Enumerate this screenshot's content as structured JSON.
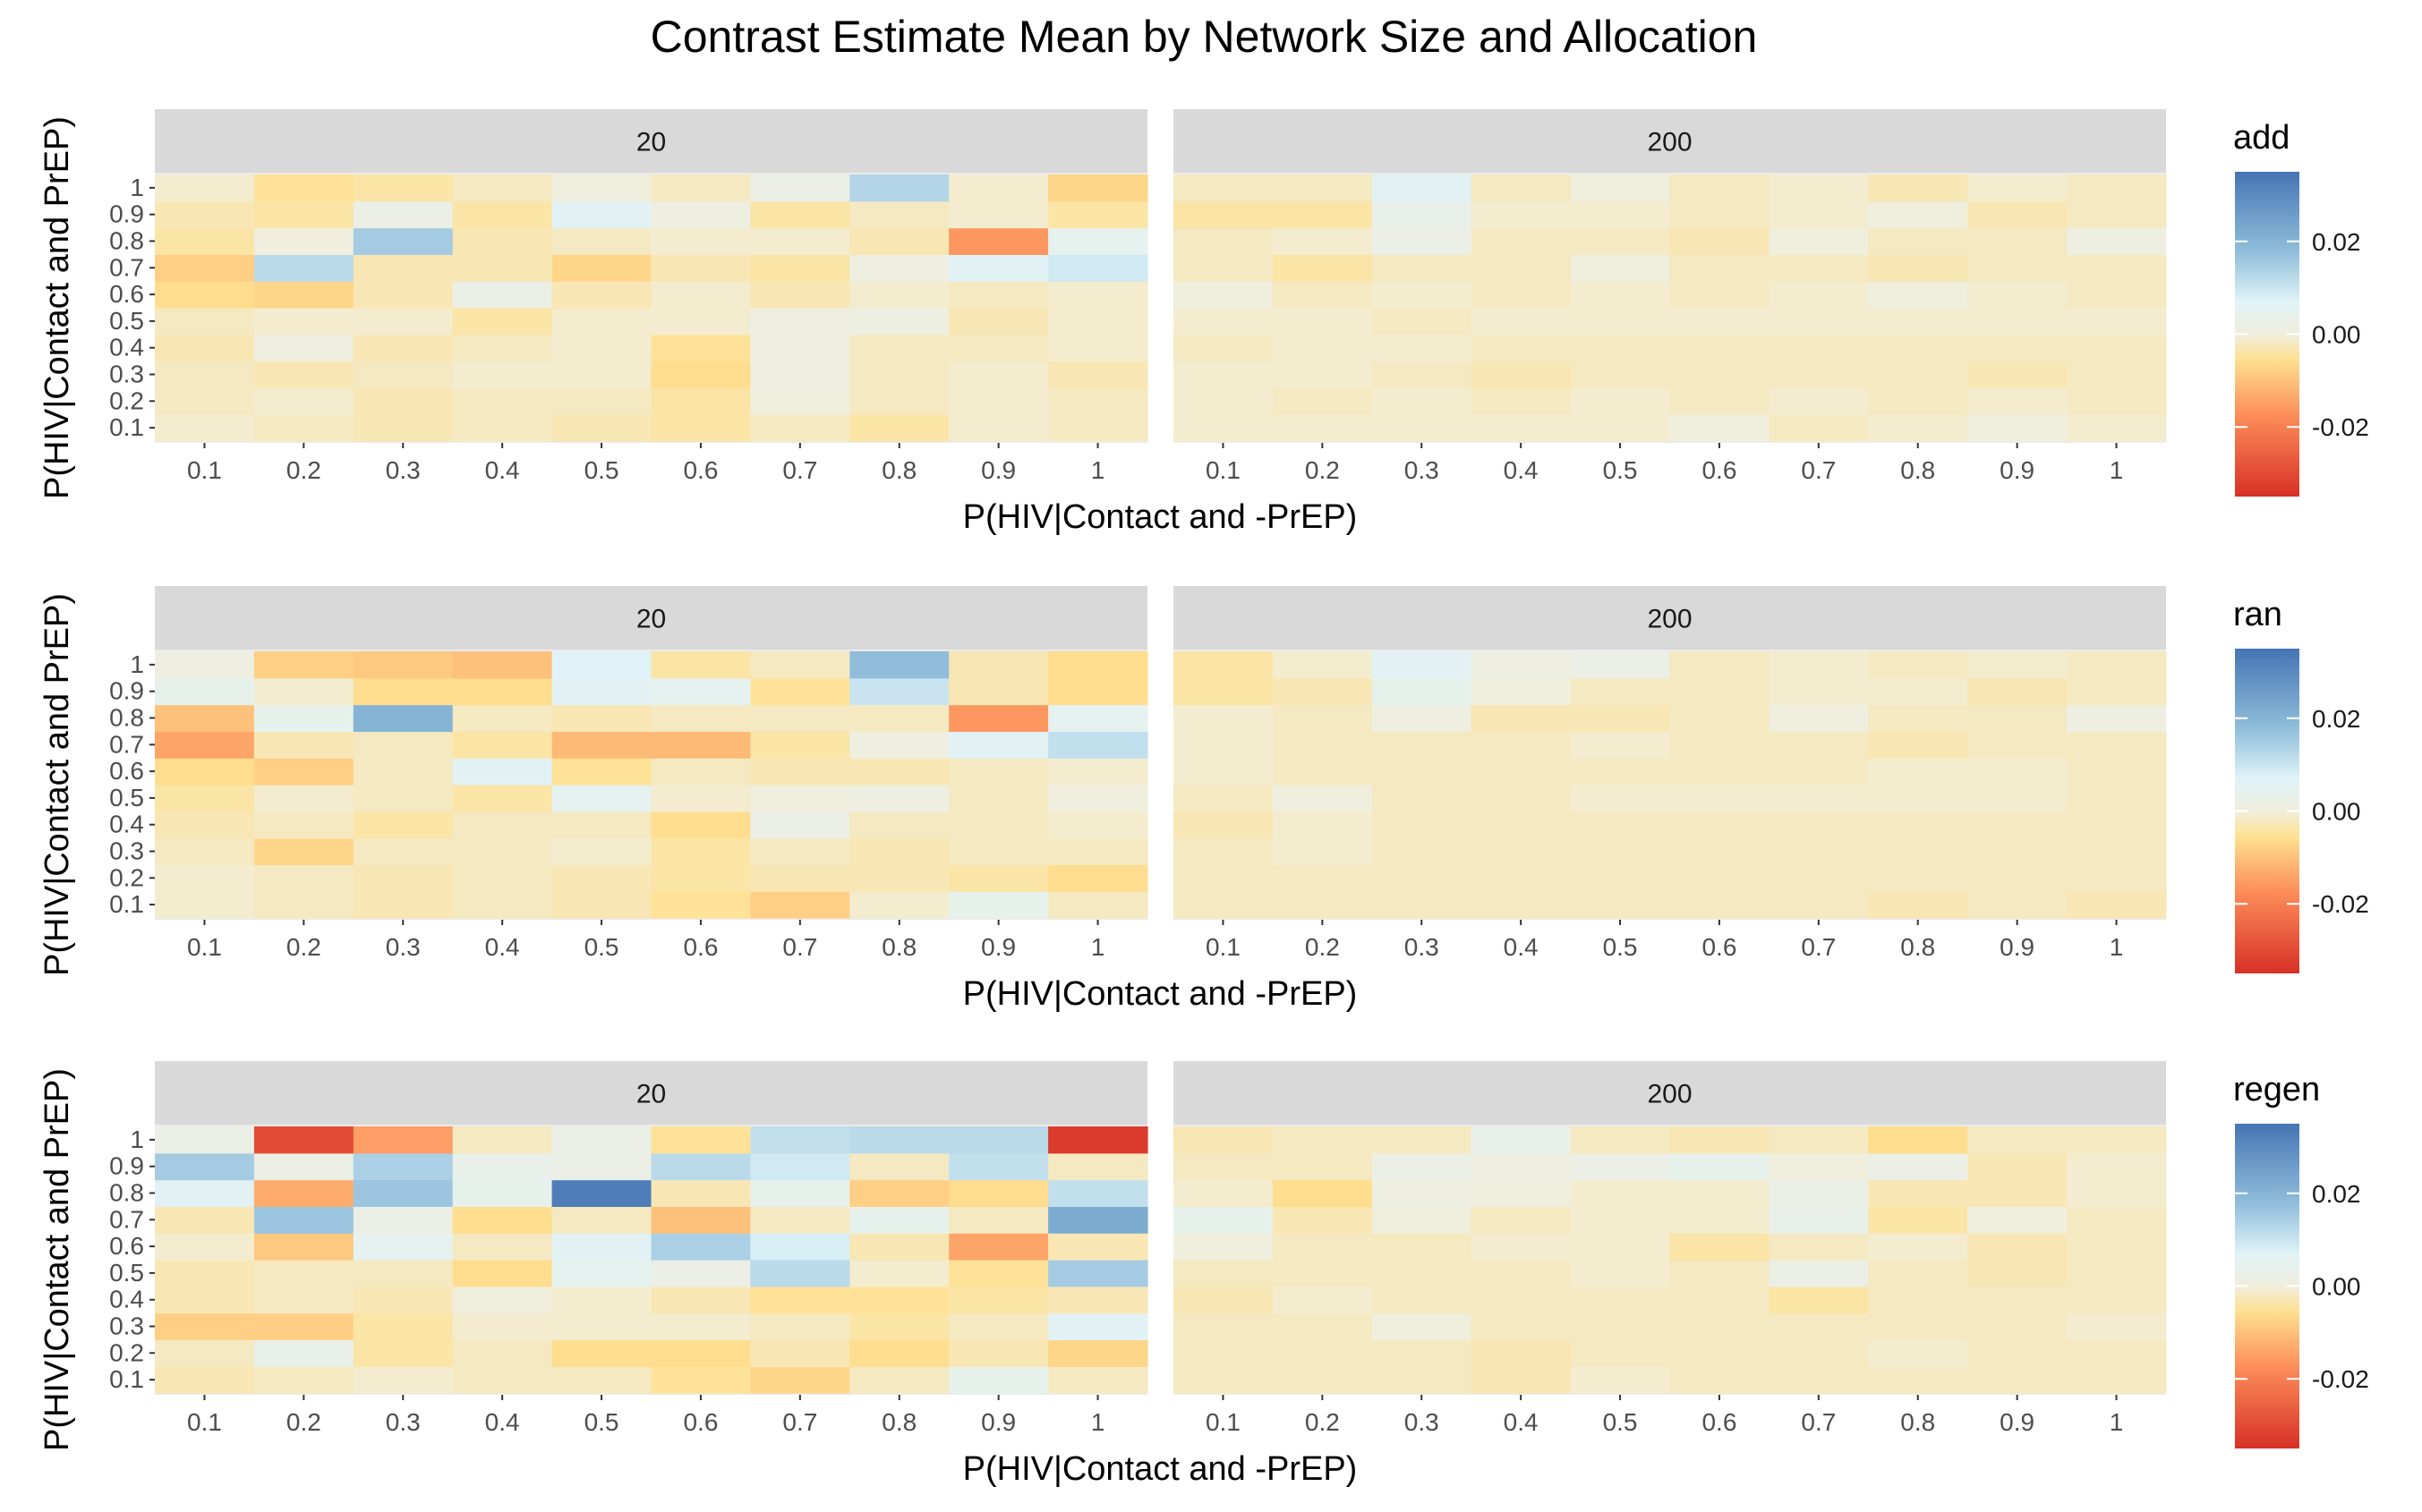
{
  "chart_data": {
    "type": "heatmap",
    "title": "Contrast Estimate Mean by Network Size and Allocation",
    "xlabel": "P(HIV|Contact and -PrEP)",
    "ylabel": "P(HIV|Contact and PrEP)",
    "x_ticks": [
      "0.1",
      "0.2",
      "0.3",
      "0.4",
      "0.5",
      "0.6",
      "0.7",
      "0.8",
      "0.9",
      "1"
    ],
    "y_ticks": [
      "0.1",
      "0.2",
      "0.3",
      "0.4",
      "0.5",
      "0.6",
      "0.7",
      "0.8",
      "0.9",
      "1"
    ],
    "network_sizes": [
      "20",
      "200"
    ],
    "legend_ticks": [
      "0.02",
      "0.00",
      "-0.02"
    ],
    "legend_tick_values": [
      0.02,
      0.0,
      -0.02
    ],
    "color_limits": [
      -0.035,
      0.035
    ],
    "colors": {
      "low": "#d73027",
      "mid": "#f0eedd",
      "high": "#4575b4",
      "strip": "#d9d9d9",
      "panel": "#ebebeb"
    },
    "panels": [
      {
        "allocation": "add",
        "facets": [
          {
            "size": "20",
            "values": [
              [
                -0.001,
                -0.002,
                -0.003,
                -0.002,
                -0.003,
                -0.004,
                -0.002,
                -0.004,
                -0.001,
                -0.002
              ],
              [
                -0.002,
                -0.001,
                -0.003,
                -0.002,
                -0.002,
                -0.004,
                0.0,
                -0.002,
                -0.001,
                -0.002
              ],
              [
                -0.002,
                -0.003,
                -0.002,
                -0.001,
                -0.001,
                -0.006,
                0.001,
                -0.002,
                -0.001,
                -0.003
              ],
              [
                -0.003,
                0.001,
                -0.003,
                -0.002,
                -0.001,
                -0.005,
                0.001,
                -0.002,
                -0.002,
                -0.001
              ],
              [
                -0.002,
                -0.001,
                -0.001,
                -0.004,
                -0.001,
                -0.001,
                0.001,
                0.001,
                -0.003,
                -0.001
              ],
              [
                -0.006,
                -0.007,
                -0.003,
                0.002,
                -0.003,
                -0.001,
                -0.003,
                -0.001,
                -0.002,
                -0.001
              ],
              [
                -0.008,
                0.012,
                -0.003,
                -0.003,
                -0.007,
                -0.003,
                -0.004,
                0.001,
                0.006,
                0.009
              ],
              [
                -0.004,
                0.0,
                0.015,
                -0.003,
                -0.002,
                -0.001,
                -0.001,
                -0.003,
                -0.016,
                0.005
              ],
              [
                -0.003,
                -0.004,
                0.002,
                -0.004,
                0.006,
                0.001,
                -0.004,
                -0.002,
                -0.001,
                -0.004
              ],
              [
                -0.001,
                -0.005,
                -0.004,
                -0.002,
                0.0,
                -0.002,
                0.002,
                0.013,
                -0.001,
                -0.007
              ]
            ]
          },
          {
            "size": "200",
            "values": [
              [
                -0.001,
                -0.001,
                -0.001,
                -0.001,
                -0.001,
                0.0,
                -0.002,
                -0.001,
                0.0,
                -0.001
              ],
              [
                -0.001,
                -0.002,
                -0.001,
                -0.002,
                -0.001,
                -0.002,
                -0.001,
                -0.002,
                -0.001,
                -0.002
              ],
              [
                -0.001,
                -0.001,
                -0.002,
                -0.003,
                -0.002,
                -0.002,
                -0.002,
                -0.002,
                -0.003,
                -0.002
              ],
              [
                -0.002,
                -0.001,
                -0.001,
                -0.002,
                -0.002,
                -0.002,
                -0.002,
                -0.002,
                -0.002,
                -0.002
              ],
              [
                -0.001,
                -0.001,
                -0.002,
                -0.001,
                -0.001,
                -0.001,
                -0.001,
                -0.001,
                -0.001,
                -0.001
              ],
              [
                0.0,
                -0.002,
                -0.001,
                -0.002,
                -0.001,
                -0.002,
                -0.001,
                0.0,
                -0.001,
                -0.002
              ],
              [
                -0.002,
                -0.004,
                -0.002,
                -0.002,
                0.0,
                -0.002,
                -0.002,
                -0.003,
                -0.002,
                -0.002
              ],
              [
                -0.002,
                -0.001,
                0.002,
                -0.002,
                -0.002,
                -0.003,
                0.0,
                -0.002,
                -0.002,
                0.001
              ],
              [
                -0.004,
                -0.004,
                0.003,
                -0.001,
                -0.001,
                -0.002,
                -0.001,
                0.0,
                -0.003,
                -0.002
              ],
              [
                -0.002,
                -0.002,
                0.006,
                -0.002,
                0.0,
                -0.002,
                -0.001,
                -0.003,
                -0.001,
                -0.002
              ]
            ]
          }
        ]
      },
      {
        "allocation": "ran",
        "facets": [
          {
            "size": "20",
            "values": [
              [
                -0.001,
                -0.002,
                -0.003,
                -0.002,
                -0.003,
                -0.005,
                -0.008,
                -0.001,
                0.004,
                -0.002
              ],
              [
                -0.001,
                -0.002,
                -0.003,
                -0.002,
                -0.003,
                -0.004,
                -0.003,
                -0.003,
                -0.004,
                -0.006
              ],
              [
                -0.002,
                -0.007,
                -0.002,
                -0.002,
                -0.001,
                -0.004,
                -0.002,
                -0.003,
                -0.002,
                -0.002
              ],
              [
                -0.003,
                -0.002,
                -0.004,
                -0.002,
                -0.002,
                -0.006,
                0.002,
                -0.002,
                -0.002,
                -0.001
              ],
              [
                -0.004,
                -0.001,
                -0.002,
                -0.004,
                0.005,
                -0.001,
                0.0,
                0.001,
                -0.002,
                0.0
              ],
              [
                -0.006,
                -0.008,
                -0.002,
                0.006,
                -0.005,
                -0.002,
                -0.003,
                -0.003,
                -0.002,
                -0.001
              ],
              [
                -0.014,
                -0.003,
                -0.002,
                -0.004,
                -0.011,
                -0.011,
                -0.004,
                0.001,
                0.006,
                0.011
              ],
              [
                -0.01,
                0.004,
                0.02,
                -0.002,
                -0.003,
                -0.002,
                -0.002,
                -0.002,
                -0.016,
                0.005
              ],
              [
                0.004,
                -0.001,
                -0.006,
                -0.006,
                0.006,
                0.005,
                -0.005,
                0.01,
                -0.003,
                -0.006
              ],
              [
                0.001,
                -0.008,
                -0.009,
                -0.01,
                0.007,
                -0.004,
                -0.002,
                0.018,
                -0.003,
                -0.006
              ]
            ]
          },
          {
            "size": "200",
            "values": [
              [
                -0.002,
                -0.002,
                -0.002,
                -0.002,
                -0.002,
                -0.002,
                -0.002,
                -0.003,
                -0.002,
                -0.003
              ],
              [
                -0.002,
                -0.002,
                -0.002,
                -0.002,
                -0.002,
                -0.002,
                -0.002,
                -0.002,
                -0.002,
                -0.002
              ],
              [
                -0.002,
                -0.001,
                -0.002,
                -0.002,
                -0.002,
                -0.002,
                -0.002,
                -0.002,
                -0.002,
                -0.002
              ],
              [
                -0.003,
                -0.001,
                -0.002,
                -0.002,
                -0.002,
                -0.002,
                -0.002,
                -0.002,
                -0.002,
                -0.002
              ],
              [
                -0.002,
                0.0,
                -0.002,
                -0.002,
                -0.001,
                -0.001,
                -0.001,
                -0.001,
                -0.001,
                -0.002
              ],
              [
                -0.001,
                -0.002,
                -0.002,
                -0.002,
                -0.002,
                -0.002,
                -0.002,
                -0.001,
                -0.001,
                -0.002
              ],
              [
                -0.001,
                -0.002,
                -0.002,
                -0.002,
                -0.001,
                -0.002,
                -0.002,
                -0.003,
                -0.002,
                -0.002
              ],
              [
                -0.001,
                -0.002,
                0.001,
                -0.003,
                -0.003,
                -0.002,
                0.0,
                -0.002,
                -0.002,
                0.001
              ],
              [
                -0.004,
                -0.003,
                0.004,
                0.0,
                -0.002,
                -0.002,
                -0.001,
                -0.001,
                -0.003,
                -0.002
              ],
              [
                -0.004,
                -0.001,
                0.006,
                0.001,
                0.002,
                -0.002,
                -0.001,
                -0.002,
                -0.001,
                -0.002
              ]
            ]
          }
        ]
      },
      {
        "allocation": "regen",
        "facets": [
          {
            "size": "20",
            "values": [
              [
                -0.003,
                -0.002,
                -0.001,
                -0.002,
                -0.002,
                -0.005,
                -0.007,
                -0.002,
                0.004,
                -0.002
              ],
              [
                -0.002,
                0.003,
                -0.004,
                -0.002,
                -0.006,
                -0.006,
                -0.003,
                -0.006,
                -0.003,
                -0.007
              ],
              [
                -0.008,
                -0.008,
                -0.004,
                -0.001,
                -0.001,
                -0.001,
                -0.002,
                -0.004,
                -0.002,
                0.006
              ],
              [
                -0.003,
                -0.002,
                -0.003,
                0.0,
                -0.001,
                -0.003,
                -0.005,
                -0.005,
                -0.004,
                -0.003
              ],
              [
                -0.003,
                -0.002,
                -0.002,
                -0.006,
                0.005,
                0.002,
                0.012,
                -0.001,
                -0.005,
                0.015
              ],
              [
                -0.001,
                -0.009,
                0.005,
                -0.002,
                0.006,
                0.014,
                0.008,
                -0.003,
                -0.014,
                -0.003
              ],
              [
                -0.003,
                0.016,
                0.002,
                -0.006,
                -0.002,
                -0.01,
                -0.002,
                0.004,
                -0.002,
                0.022
              ],
              [
                0.006,
                -0.013,
                0.016,
                0.004,
                0.033,
                -0.003,
                0.004,
                -0.008,
                -0.006,
                0.011
              ],
              [
                0.015,
                0.002,
                0.014,
                0.003,
                0.002,
                0.012,
                0.009,
                -0.002,
                0.011,
                -0.002
              ],
              [
                0.002,
                -0.03,
                -0.015,
                -0.002,
                0.002,
                -0.005,
                0.011,
                0.012,
                0.012,
                -0.033
              ]
            ]
          },
          {
            "size": "200",
            "values": [
              [
                -0.002,
                -0.002,
                -0.002,
                -0.003,
                -0.001,
                -0.002,
                -0.002,
                -0.002,
                -0.002,
                -0.002
              ],
              [
                -0.002,
                -0.002,
                -0.002,
                -0.003,
                -0.002,
                -0.002,
                -0.002,
                -0.001,
                -0.002,
                -0.002
              ],
              [
                -0.002,
                -0.002,
                0.0,
                -0.002,
                -0.002,
                -0.002,
                -0.002,
                -0.002,
                -0.002,
                -0.001
              ],
              [
                -0.003,
                -0.001,
                -0.002,
                -0.002,
                -0.002,
                -0.002,
                -0.004,
                -0.002,
                -0.002,
                -0.002
              ],
              [
                -0.002,
                -0.002,
                -0.002,
                -0.002,
                -0.001,
                -0.002,
                0.002,
                -0.002,
                -0.003,
                -0.002
              ],
              [
                0.0,
                -0.002,
                -0.002,
                -0.001,
                -0.001,
                -0.004,
                -0.002,
                -0.001,
                -0.003,
                -0.002
              ],
              [
                0.004,
                -0.003,
                0.0,
                -0.002,
                -0.001,
                -0.001,
                0.003,
                -0.004,
                0.0,
                -0.002
              ],
              [
                -0.001,
                -0.006,
                0.001,
                0.0,
                -0.001,
                -0.001,
                0.002,
                -0.003,
                -0.003,
                -0.001
              ],
              [
                -0.002,
                -0.002,
                0.002,
                0.001,
                0.002,
                0.004,
                0.0,
                0.002,
                -0.003,
                -0.001
              ],
              [
                -0.003,
                -0.002,
                -0.002,
                0.003,
                -0.002,
                -0.003,
                -0.002,
                -0.006,
                -0.002,
                -0.002
              ]
            ]
          }
        ]
      }
    ]
  }
}
